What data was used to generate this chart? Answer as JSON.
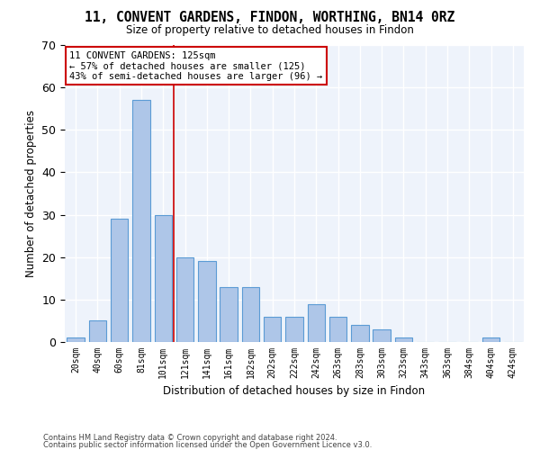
{
  "title": "11, CONVENT GARDENS, FINDON, WORTHING, BN14 0RZ",
  "subtitle": "Size of property relative to detached houses in Findon",
  "xlabel": "Distribution of detached houses by size in Findon",
  "ylabel": "Number of detached properties",
  "bar_color": "#aec6e8",
  "bar_edgecolor": "#5b9bd5",
  "background_color": "#eef3fb",
  "grid_color": "#ffffff",
  "categories": [
    "20sqm",
    "40sqm",
    "60sqm",
    "81sqm",
    "101sqm",
    "121sqm",
    "141sqm",
    "161sqm",
    "182sqm",
    "202sqm",
    "222sqm",
    "242sqm",
    "263sqm",
    "283sqm",
    "303sqm",
    "323sqm",
    "343sqm",
    "363sqm",
    "384sqm",
    "404sqm",
    "424sqm"
  ],
  "values": [
    1,
    5,
    29,
    57,
    30,
    20,
    19,
    13,
    13,
    6,
    6,
    9,
    6,
    4,
    3,
    1,
    0,
    0,
    0,
    1,
    0
  ],
  "ylim": [
    0,
    70
  ],
  "yticks": [
    0,
    10,
    20,
    30,
    40,
    50,
    60,
    70
  ],
  "vline_color": "#cc0000",
  "vline_x": 4.5,
  "annotation_text": "11 CONVENT GARDENS: 125sqm\n← 57% of detached houses are smaller (125)\n43% of semi-detached houses are larger (96) →",
  "annotation_box_edgecolor": "#cc0000",
  "footnote1": "Contains HM Land Registry data © Crown copyright and database right 2024.",
  "footnote2": "Contains public sector information licensed under the Open Government Licence v3.0."
}
